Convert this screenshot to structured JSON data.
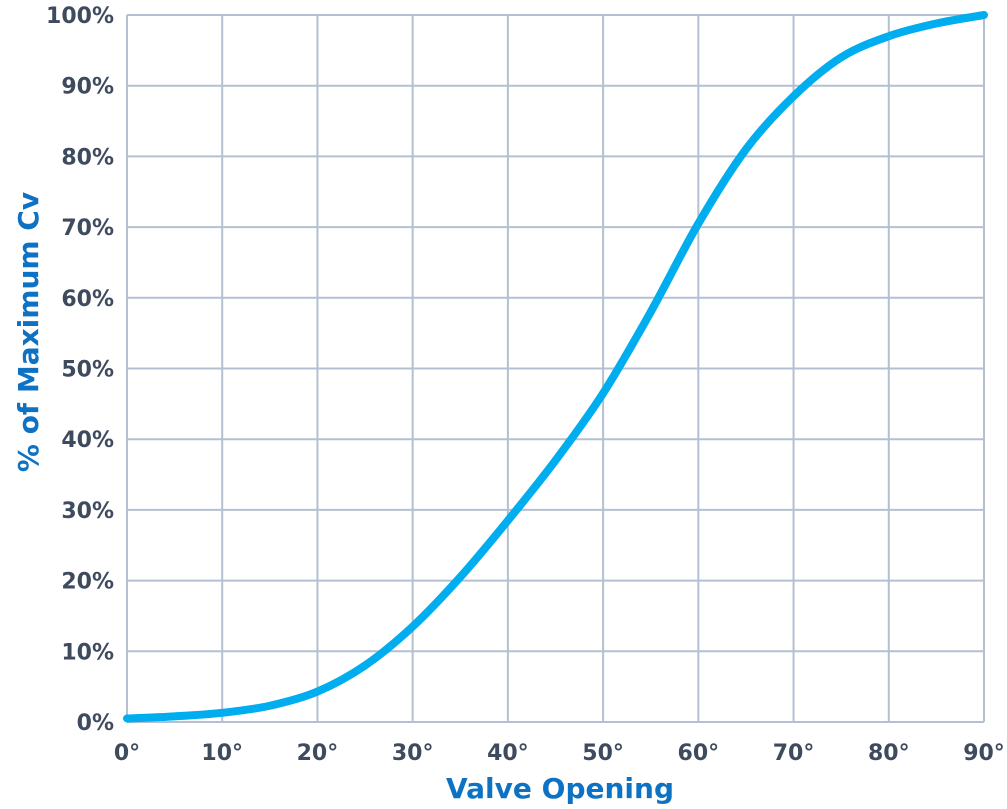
{
  "chart_data": {
    "type": "line",
    "xlabel": "Valve Opening",
    "ylabel": "% of Maximum Cv",
    "x_ticks": [
      "0°",
      "10°",
      "20°",
      "30°",
      "40°",
      "50°",
      "60°",
      "70°",
      "80°",
      "90°"
    ],
    "y_ticks": [
      "0%",
      "10%",
      "20%",
      "30%",
      "40%",
      "50%",
      "60%",
      "70%",
      "80%",
      "90%",
      "100%"
    ],
    "xlim": [
      0,
      90
    ],
    "ylim": [
      0,
      100
    ],
    "grid": true,
    "series": [
      {
        "x": [
          0,
          5,
          10,
          15,
          20,
          25,
          30,
          35,
          40,
          45,
          50,
          55,
          60,
          65,
          70,
          75,
          80,
          85,
          90
        ],
        "y": [
          0.5,
          0.8,
          1.3,
          2.3,
          4.3,
          8.0,
          13.5,
          20.5,
          28.5,
          37.0,
          46.5,
          58.0,
          70.5,
          81.0,
          88.5,
          94.0,
          97.0,
          98.8,
          100
        ]
      }
    ]
  },
  "colors": {
    "line": "#00adef",
    "grid": "#b4c0d1",
    "tick_label": "#3e4a5e",
    "axis_title": "#0e72c4"
  }
}
